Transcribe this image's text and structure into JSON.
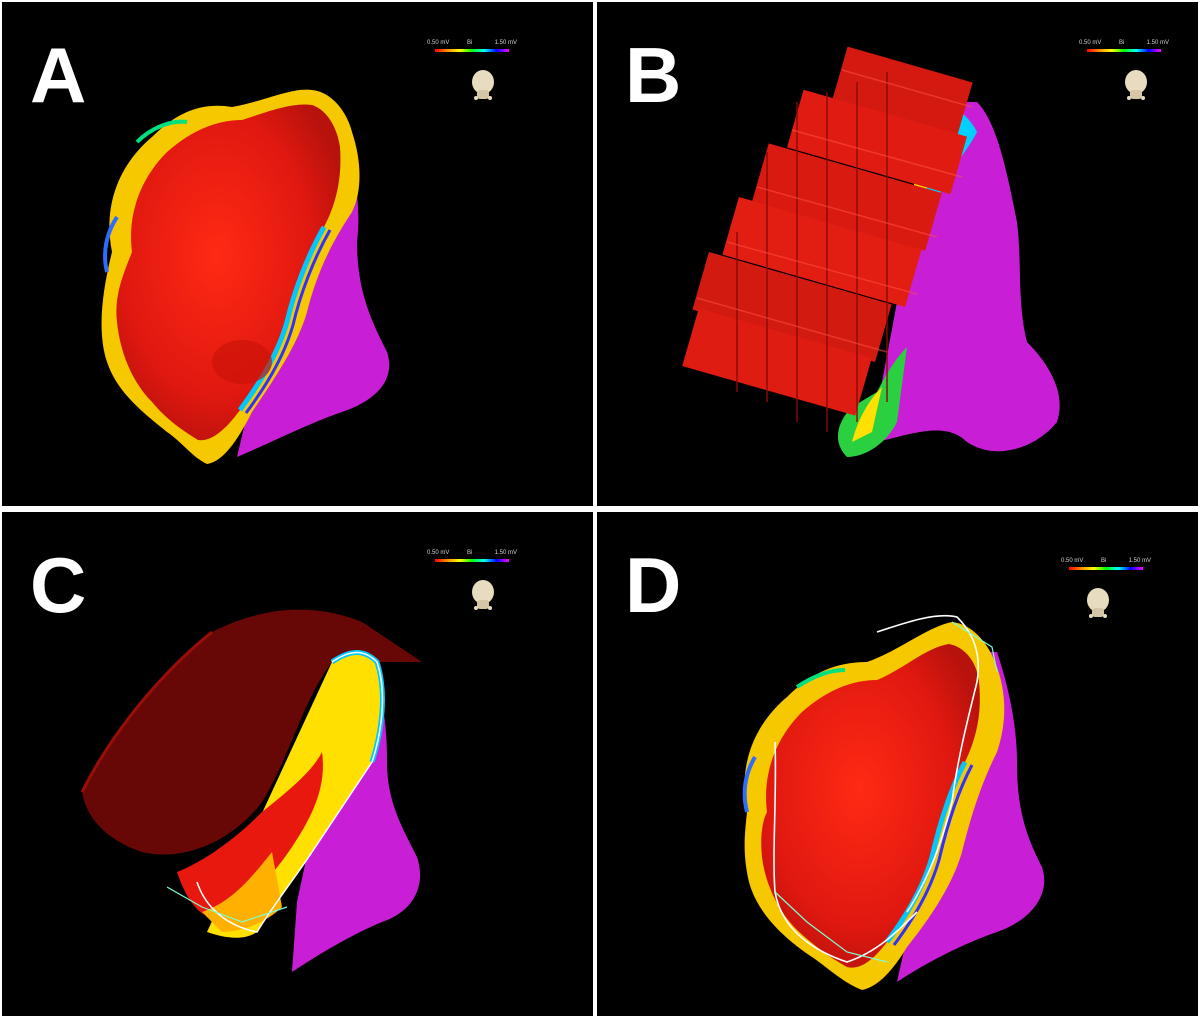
{
  "panels": [
    {
      "id": "A",
      "label": "A"
    },
    {
      "id": "B",
      "label": "B"
    },
    {
      "id": "C",
      "label": "C"
    },
    {
      "id": "D",
      "label": "D"
    }
  ],
  "colorbar": {
    "min_label": "0.50 mV",
    "mode_label": "Bi",
    "max_label": "1.50 mV",
    "colors": [
      "#ff0000",
      "#ff8c00",
      "#ffff00",
      "#00ff00",
      "#00ffff",
      "#0000ff",
      "#ff00ff"
    ]
  },
  "colors": {
    "background": "#000000",
    "scar": "#ee1b12",
    "healthy": "#c81fd6",
    "border_line": "#ffffff"
  },
  "icons": {
    "orientation": "torso-orientation-icon"
  }
}
